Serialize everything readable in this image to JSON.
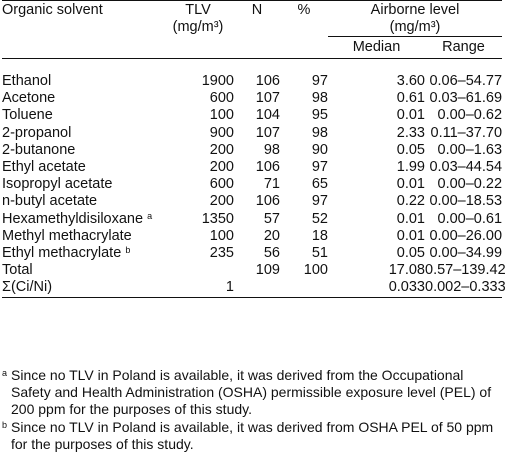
{
  "headers": {
    "col1": "Organic solvent",
    "col2_line1": "TLV",
    "col2_line2": "(mg/m³)",
    "col3": "N",
    "col4": "%",
    "group_line1": "Airborne level",
    "group_line2": "(mg/m³)",
    "median": "Median",
    "range": "Range"
  },
  "rows": [
    {
      "name": "Ethanol",
      "mark": "",
      "tlv": "1900",
      "n": "106",
      "pct": "97",
      "median": "3.60",
      "range": "0.06–54.77"
    },
    {
      "name": "Acetone",
      "mark": "",
      "tlv": "600",
      "n": "107",
      "pct": "98",
      "median": "0.61",
      "range": "0.03–61.69"
    },
    {
      "name": "Toluene",
      "mark": "",
      "tlv": "100",
      "n": "104",
      "pct": "95",
      "median": "0.01",
      "range": "0.00–0.62"
    },
    {
      "name": "2-propanol",
      "mark": "",
      "tlv": "900",
      "n": "107",
      "pct": "98",
      "median": "2.33",
      "range": "0.11–37.70"
    },
    {
      "name": "2-butanone",
      "mark": "",
      "tlv": "200",
      "n": "98",
      "pct": "90",
      "median": "0.05",
      "range": "0.00–1.63"
    },
    {
      "name": "Ethyl acetate",
      "mark": "",
      "tlv": "200",
      "n": "106",
      "pct": "97",
      "median": "1.99",
      "range": "0.03–44.54"
    },
    {
      "name": "Isopropyl acetate",
      "mark": "",
      "tlv": "600",
      "n": "71",
      "pct": "65",
      "median": "0.01",
      "range": "0.00–0.22"
    },
    {
      "name": "n-butyl acetate",
      "mark": "",
      "tlv": "200",
      "n": "106",
      "pct": "97",
      "median": "0.22",
      "range": "0.00–18.53"
    },
    {
      "name": "Hexamethyldisiloxane",
      "mark": "a",
      "tlv": "1350",
      "n": "57",
      "pct": "52",
      "median": "0.01",
      "range": "0.00–0.61"
    },
    {
      "name": "Methyl methacrylate",
      "mark": "",
      "tlv": "100",
      "n": "20",
      "pct": "18",
      "median": "0.01",
      "range": "0.00–26.00"
    },
    {
      "name": "Ethyl methacrylate",
      "mark": "b",
      "tlv": "235",
      "n": "56",
      "pct": "51",
      "median": "0.05",
      "range": "0.00–34.99"
    },
    {
      "name": "Total",
      "mark": "",
      "tlv": "",
      "n": "109",
      "pct": "100",
      "median": "17.08",
      "range": "0.57–139.42"
    },
    {
      "name": "Σ(Ci/Ni)",
      "mark": "",
      "tlv": "1",
      "n": "",
      "pct": "",
      "median": "0.033",
      "range": "0.002–0.333"
    }
  ],
  "footnotes": [
    {
      "mark": "a",
      "text": "Since no TLV in Poland is available, it was derived from the Occupational Safety and Health Administration (OSHA) permissible exposure level (PEL) of 200 ppm for the purposes of this study."
    },
    {
      "mark": "b",
      "text": "Since no TLV in Poland is available, it was derived from OSHA PEL of 50 ppm for the purposes of this study."
    }
  ]
}
